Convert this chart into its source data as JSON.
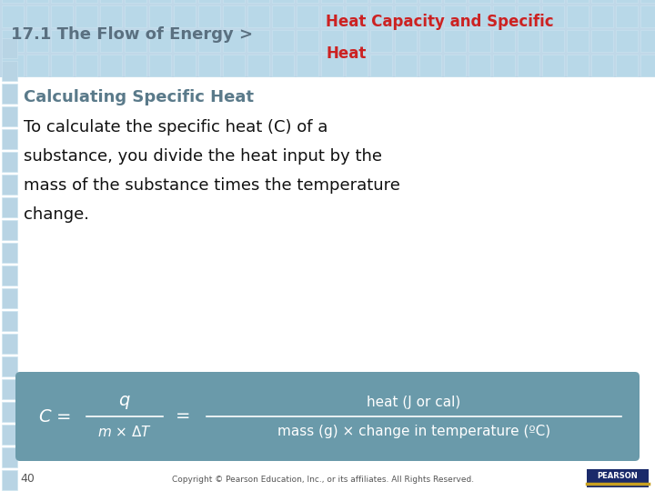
{
  "bg_color": "#ffffff",
  "header_bg_color": "#c0d8e8",
  "tile_color": "#b0cedd",
  "tile_border_color": "#cce0ec",
  "header_left_text": "17.1 The Flow of Energy >",
  "header_left_color": "#5a7080",
  "header_right_line1": "Heat Capacity and Specific",
  "header_right_line2": "Heat",
  "header_right_color": "#cc2222",
  "section_title": "Calculating Specific Heat",
  "section_title_color": "#5a7a8a",
  "body_text_color": "#111111",
  "formula_box_color": "#6a9aaa",
  "formula_text_color": "#ffffff",
  "footer_text": "Copyright © Pearson Education, Inc., or its affiliates. All Rights Reserved.",
  "footer_page": "40",
  "footer_color": "#555555",
  "pearson_bg": "#1a2a6a",
  "pearson_accent": "#c8a020",
  "left_tile_color": "#b8d4e4"
}
